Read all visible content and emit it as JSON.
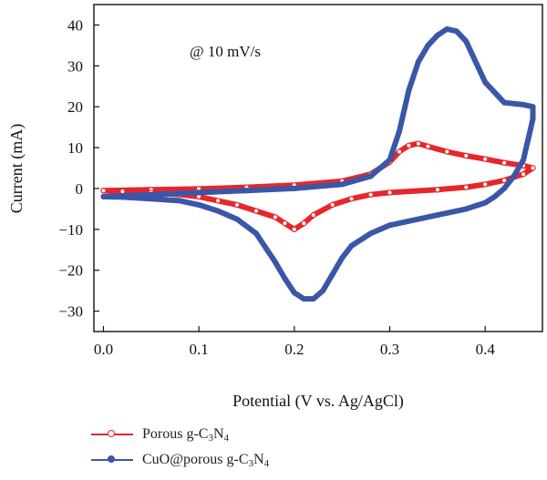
{
  "chart_data": {
    "type": "line",
    "title": "",
    "annotation": "@ 10 mV/s",
    "xlabel": "Potential (V vs. Ag/AgCl)",
    "ylabel": "Current (mA)",
    "xlim": [
      -0.01,
      0.46
    ],
    "ylim": [
      -35,
      45
    ],
    "xticks": [
      0.0,
      0.1,
      0.2,
      0.3,
      0.4
    ],
    "xtick_labels": [
      "0.0",
      "0.1",
      "0.2",
      "0.3",
      "0.4"
    ],
    "yticks": [
      -30,
      -20,
      -10,
      0,
      10,
      20,
      30,
      40
    ],
    "ytick_labels": [
      "−30",
      "−20",
      "−10",
      "0",
      "10",
      "20",
      "30",
      "40"
    ],
    "grid": false,
    "legend_position": "below",
    "series": [
      {
        "name": "Porous g-C3N4",
        "name_parts": {
          "base": "Porous g-C",
          "sub1": "3",
          "mid": "N",
          "sub2": "4"
        },
        "color": "#e8262a",
        "marker": "hollow-circle",
        "x": [
          0.0,
          0.05,
          0.1,
          0.15,
          0.2,
          0.25,
          0.28,
          0.3,
          0.31,
          0.32,
          0.33,
          0.34,
          0.36,
          0.38,
          0.4,
          0.42,
          0.44,
          0.45,
          0.44,
          0.42,
          0.4,
          0.38,
          0.35,
          0.3,
          0.28,
          0.26,
          0.24,
          0.22,
          0.21,
          0.2,
          0.19,
          0.18,
          0.16,
          0.14,
          0.12,
          0.1,
          0.08,
          0.05,
          0.02,
          0.0
        ],
        "y": [
          -0.5,
          -0.3,
          -0.1,
          0.3,
          0.8,
          1.8,
          3.5,
          6.5,
          9.0,
          10.5,
          11.0,
          10.3,
          9.0,
          8.0,
          7.2,
          6.3,
          5.6,
          5.0,
          3.5,
          2.0,
          1.0,
          0.3,
          -0.3,
          -1.0,
          -1.5,
          -2.5,
          -4.0,
          -6.5,
          -8.5,
          -10.0,
          -8.5,
          -7.0,
          -5.5,
          -4.0,
          -3.0,
          -2.0,
          -1.5,
          -1.0,
          -0.7,
          -0.5
        ]
      },
      {
        "name": "CuO@porous g-C3N4",
        "name_parts": {
          "base": "CuO@porous g-C",
          "sub1": "3",
          "mid": "N",
          "sub2": "4"
        },
        "color": "#3a57a7",
        "marker": "filled-circle",
        "x": [
          0.0,
          0.05,
          0.1,
          0.15,
          0.2,
          0.25,
          0.28,
          0.3,
          0.31,
          0.32,
          0.33,
          0.34,
          0.35,
          0.36,
          0.37,
          0.38,
          0.39,
          0.4,
          0.42,
          0.44,
          0.45,
          0.45,
          0.445,
          0.44,
          0.43,
          0.42,
          0.41,
          0.4,
          0.38,
          0.35,
          0.32,
          0.3,
          0.28,
          0.26,
          0.25,
          0.24,
          0.23,
          0.22,
          0.21,
          0.2,
          0.19,
          0.18,
          0.17,
          0.16,
          0.14,
          0.12,
          0.1,
          0.08,
          0.05,
          0.02,
          0.0
        ],
        "y": [
          -2.0,
          -1.5,
          -1.0,
          -0.5,
          0.0,
          1.0,
          3.0,
          7.0,
          14.0,
          24.0,
          31.0,
          35.0,
          37.5,
          39.0,
          38.5,
          36.0,
          31.0,
          26.0,
          21.0,
          20.5,
          20.0,
          17.0,
          12.0,
          7.0,
          3.0,
          0.0,
          -2.0,
          -3.5,
          -5.0,
          -6.5,
          -8.0,
          -9.0,
          -11.0,
          -14.0,
          -17.0,
          -21.0,
          -25.0,
          -27.0,
          -27.0,
          -25.5,
          -22.0,
          -18.0,
          -14.5,
          -11.0,
          -7.5,
          -5.5,
          -4.0,
          -3.0,
          -2.5,
          -2.1,
          -2.0
        ]
      }
    ]
  }
}
